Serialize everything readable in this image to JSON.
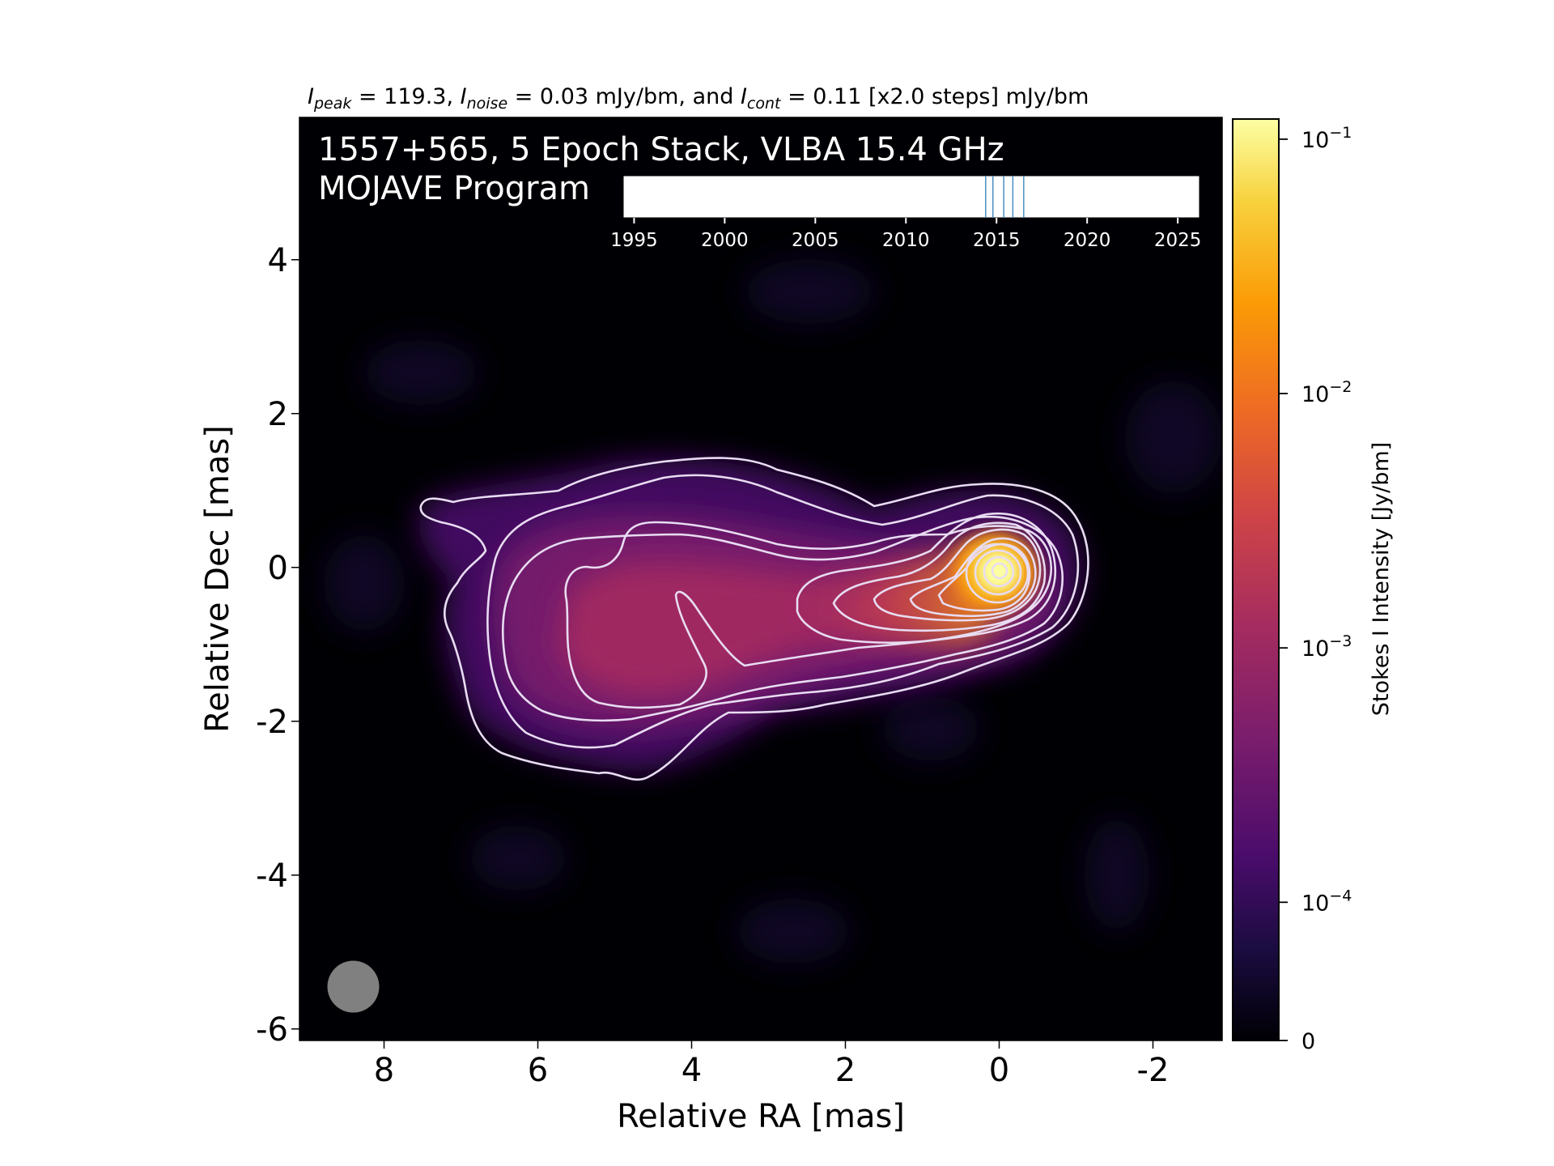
{
  "header": {
    "peak_sym": "I",
    "peak_sub": "peak",
    "peak_val": " = 119.3, ",
    "noise_sym": "I",
    "noise_sub": "noise",
    "noise_val": " = 0.03 mJy/bm, and ",
    "cont_sym": "I",
    "cont_sub": "cont",
    "cont_val": " = 0.11 [x2.0 steps] mJy/bm"
  },
  "overlay": {
    "line1": "1557+565, 5 Epoch Stack, VLBA 15.4 GHz",
    "line2": "MOJAVE Program"
  },
  "timeline": {
    "ticks": [
      "1995",
      "2000",
      "2005",
      "2010",
      "2015",
      "2020",
      "2025"
    ],
    "epochs": [
      2014.4,
      2014.8,
      2015.4,
      2015.9,
      2016.5
    ],
    "range": [
      1994.4,
      2026.2
    ],
    "epoch_color": "#4a90c0"
  },
  "chart_data": {
    "type": "heatmap",
    "title": "",
    "xlabel": "Relative RA [mas]",
    "ylabel": "Relative Dec [mas]",
    "xlim": [
      9.1,
      -2.9
    ],
    "ylim": [
      -6.15,
      5.85
    ],
    "x_ticks": [
      "8",
      "6",
      "4",
      "2",
      "0",
      "-2"
    ],
    "x_tick_values": [
      8,
      6,
      4,
      2,
      0,
      -2
    ],
    "y_ticks": [
      "4",
      "2",
      "0",
      "-2",
      "-4",
      "-6"
    ],
    "y_tick_values": [
      4,
      2,
      0,
      -2,
      -4,
      -6
    ],
    "colormap": "inferno",
    "peak_location": [
      0,
      0
    ],
    "beam_position": [
      8.4,
      -5.45
    ],
    "beam_color": "#808080",
    "contour_color": "#e8dcf2",
    "colorbar": {
      "label": "Stokes I Intensity [Jy/bm]",
      "ticks": [
        {
          "value": 0.1,
          "base": "10",
          "exp": "−1"
        },
        {
          "value": 0.01,
          "base": "10",
          "exp": "−2"
        },
        {
          "value": 0.001,
          "base": "10",
          "exp": "−3"
        },
        {
          "value": 0.0001,
          "base": "10",
          "exp": "−4"
        },
        {
          "value": 0,
          "base": "0",
          "exp": ""
        }
      ],
      "colors": [
        "#000004",
        "#1b0c41",
        "#4a0c6b",
        "#781c6d",
        "#a52c60",
        "#cf4446",
        "#ed6925",
        "#fb9b06",
        "#f7d13d",
        "#fcffa4"
      ]
    }
  }
}
